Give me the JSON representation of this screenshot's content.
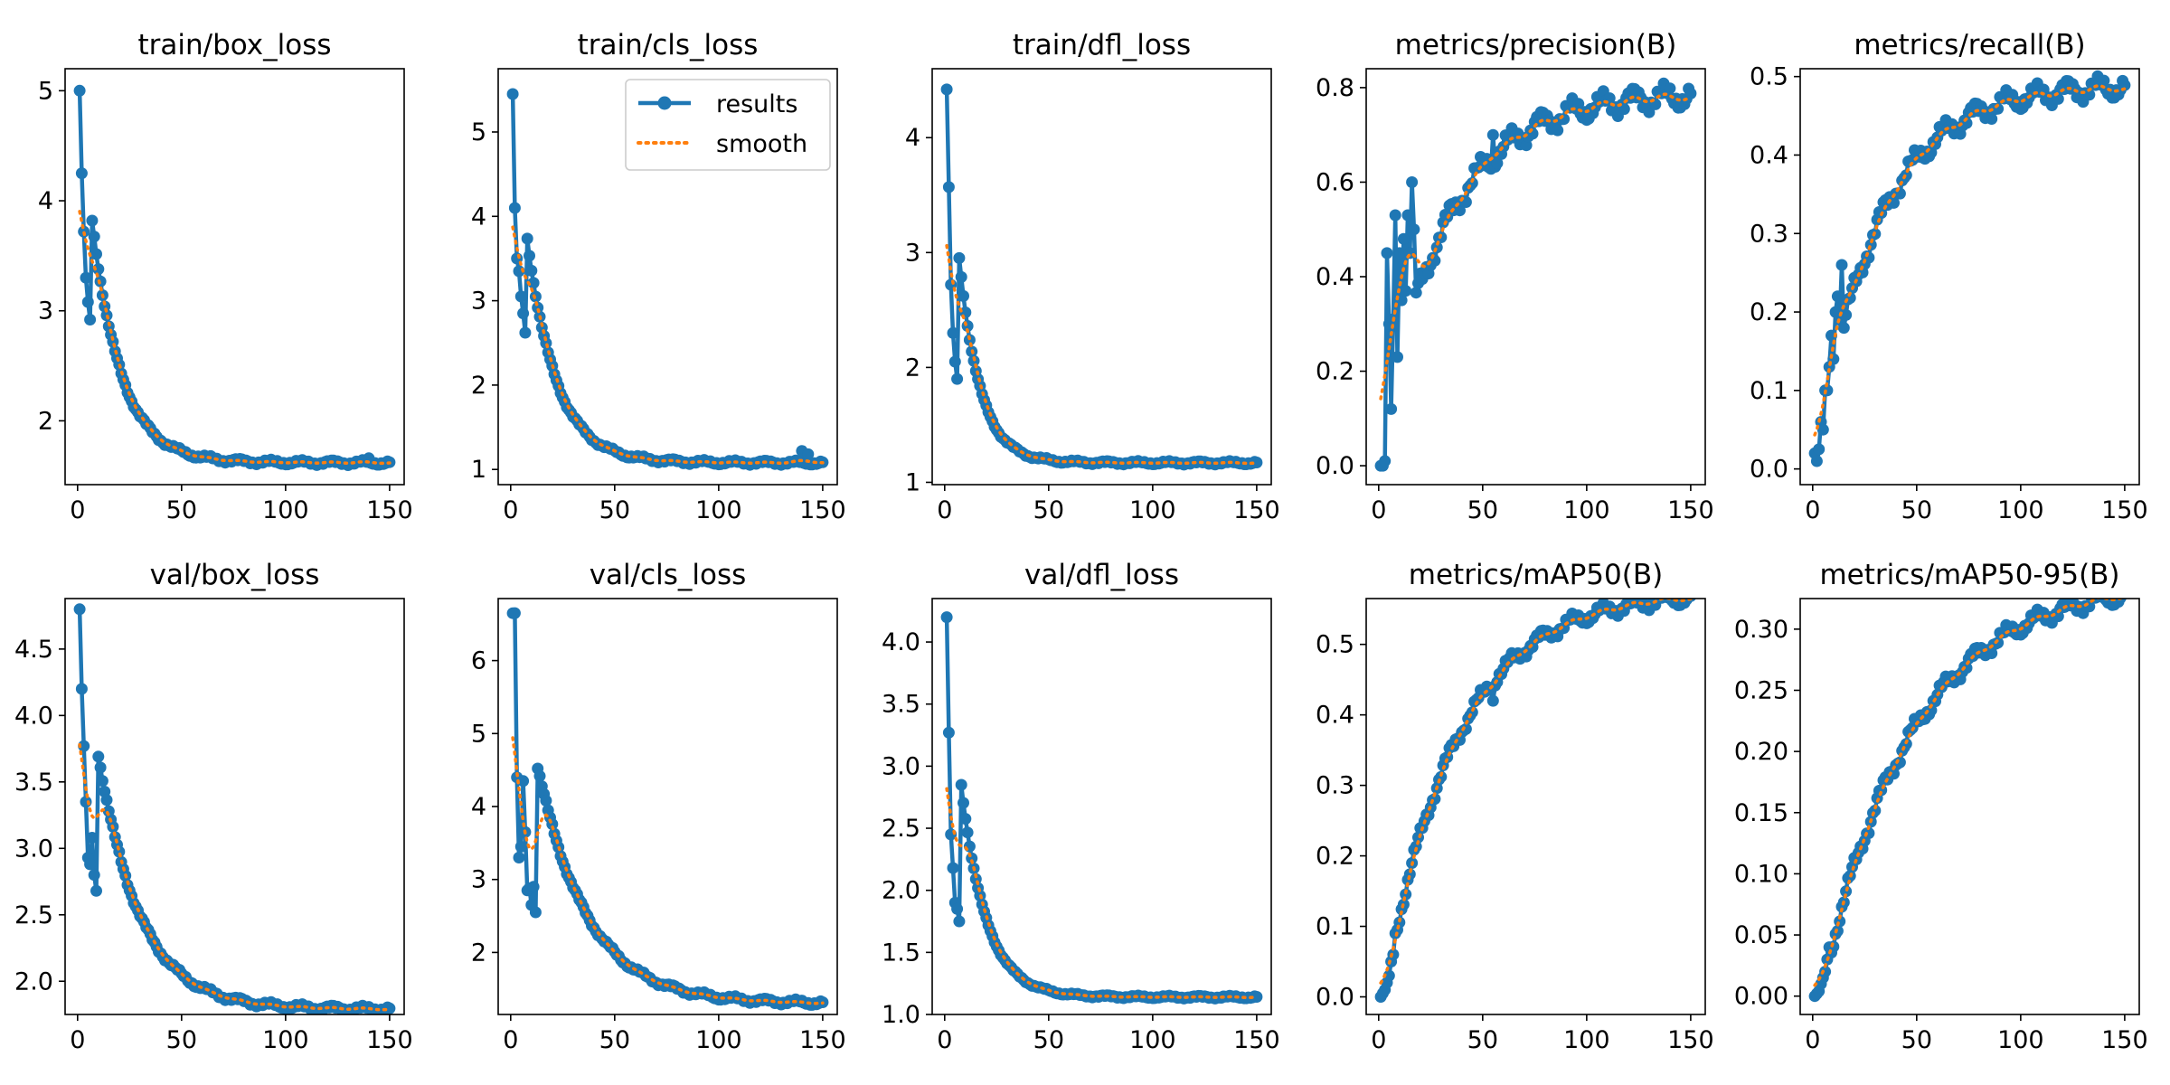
{
  "figure": {
    "legend": {
      "results_label": "results",
      "smooth_label": "smooth",
      "placement": "upper-right of train/cls_loss"
    },
    "colors": {
      "results": "#1f77b4",
      "smooth": "#ff7f0e",
      "axes": "#000000",
      "background": "#ffffff"
    }
  },
  "chart_data": [
    {
      "type": "line",
      "title": "train/box_loss",
      "xlim": [
        -6,
        157
      ],
      "ylim": [
        1.42,
        5.2
      ],
      "xticks": [
        0,
        50,
        100,
        150
      ],
      "yticks": [
        2,
        3,
        4,
        5
      ],
      "start": 5.0,
      "rise": 1.05,
      "end": 1.62,
      "tau": 14,
      "noise": 0.012,
      "outliers": [
        [
          140,
          1.66
        ]
      ],
      "early": [
        [
          1,
          5.0
        ],
        [
          2,
          4.25
        ],
        [
          3,
          3.72
        ],
        [
          4,
          3.3
        ],
        [
          5,
          3.08
        ],
        [
          6,
          2.92
        ]
      ],
      "series": [
        {
          "name": "results"
        },
        {
          "name": "smooth"
        }
      ]
    },
    {
      "type": "line",
      "title": "train/cls_loss",
      "xlim": [
        -6,
        157
      ],
      "ylim": [
        0.82,
        5.75
      ],
      "xticks": [
        0,
        50,
        100,
        150
      ],
      "yticks": [
        1,
        2,
        3,
        4,
        5
      ],
      "start": 5.45,
      "rise": 1.0,
      "end": 1.08,
      "tau": 14,
      "noise": 0.014,
      "outliers": [
        [
          140,
          1.22
        ],
        [
          143,
          1.18
        ]
      ],
      "early": [
        [
          1,
          5.45
        ],
        [
          2,
          4.1
        ],
        [
          3,
          3.5
        ],
        [
          4,
          3.35
        ],
        [
          5,
          3.05
        ],
        [
          6,
          2.85
        ],
        [
          7,
          2.62
        ]
      ],
      "series": [
        {
          "name": "results"
        },
        {
          "name": "smooth"
        }
      ]
    },
    {
      "type": "line",
      "title": "train/dfl_loss",
      "xlim": [
        -6,
        157
      ],
      "ylim": [
        0.98,
        4.6
      ],
      "xticks": [
        0,
        50,
        100,
        150
      ],
      "yticks": [
        1,
        2,
        3,
        4
      ],
      "start": 4.42,
      "rise": 1.0,
      "end": 1.17,
      "tau": 10,
      "noise": 0.008,
      "outliers": [],
      "early": [
        [
          1,
          4.42
        ],
        [
          2,
          3.57
        ],
        [
          3,
          2.72
        ],
        [
          4,
          2.3
        ],
        [
          5,
          2.05
        ],
        [
          6,
          1.9
        ]
      ],
      "series": [
        {
          "name": "results"
        },
        {
          "name": "smooth"
        }
      ]
    },
    {
      "type": "line",
      "title": "metrics/precision(B)",
      "xlim": [
        -6,
        157
      ],
      "ylim": [
        -0.04,
        0.84
      ],
      "xticks": [
        0,
        50,
        100,
        150
      ],
      "yticks": [
        0.0,
        0.2,
        0.4,
        0.6,
        0.8
      ],
      "start": 0.05,
      "rise": 0.0,
      "end": 0.79,
      "tau": 32,
      "noise": 0.015,
      "outliers": [
        [
          55,
          0.7
        ],
        [
          57,
          0.64
        ]
      ],
      "early": [
        [
          1,
          0.0
        ],
        [
          2,
          0.0
        ],
        [
          3,
          0.01
        ],
        [
          4,
          0.45
        ],
        [
          5,
          0.3
        ],
        [
          6,
          0.12
        ],
        [
          7,
          0.31
        ],
        [
          8,
          0.53
        ],
        [
          9,
          0.23
        ],
        [
          10,
          0.45
        ],
        [
          11,
          0.35
        ],
        [
          12,
          0.48
        ],
        [
          13,
          0.37
        ],
        [
          14,
          0.53
        ],
        [
          15,
          0.45
        ],
        [
          16,
          0.6
        ],
        [
          17,
          0.5
        ]
      ],
      "series": [
        {
          "name": "results"
        },
        {
          "name": "smooth"
        }
      ]
    },
    {
      "type": "line",
      "title": "metrics/recall(B)",
      "xlim": [
        -6,
        157
      ],
      "ylim": [
        -0.02,
        0.51
      ],
      "xticks": [
        0,
        50,
        100,
        150
      ],
      "yticks": [
        0.0,
        0.1,
        0.2,
        0.3,
        0.4,
        0.5
      ],
      "start": 0.0,
      "rise": 0.0,
      "end": 0.49,
      "tau": 30,
      "noise": 0.008,
      "outliers": [],
      "early": [
        [
          1,
          0.02
        ],
        [
          2,
          0.01
        ],
        [
          3,
          0.025
        ],
        [
          4,
          0.06
        ],
        [
          5,
          0.05
        ],
        [
          6,
          0.1
        ],
        [
          7,
          0.1
        ],
        [
          8,
          0.13
        ],
        [
          9,
          0.17
        ],
        [
          10,
          0.14
        ],
        [
          11,
          0.2
        ],
        [
          12,
          0.22
        ],
        [
          13,
          0.19
        ],
        [
          14,
          0.26
        ]
      ],
      "series": [
        {
          "name": "results"
        },
        {
          "name": "smooth"
        }
      ]
    },
    {
      "type": "line",
      "title": "val/box_loss",
      "xlim": [
        -6,
        157
      ],
      "ylim": [
        1.75,
        4.88
      ],
      "xticks": [
        0,
        50,
        100,
        150
      ],
      "yticks": [
        2.0,
        2.5,
        3.0,
        3.5,
        4.0,
        4.5
      ],
      "start": 4.8,
      "rise": 0.95,
      "end": 1.79,
      "tau": 20,
      "noise": 0.012,
      "outliers": [],
      "early": [
        [
          1,
          4.8
        ],
        [
          2,
          4.2
        ],
        [
          3,
          3.77
        ],
        [
          4,
          3.35
        ],
        [
          5,
          2.93
        ],
        [
          6,
          2.88
        ],
        [
          7,
          3.08
        ],
        [
          8,
          2.8
        ],
        [
          9,
          2.68
        ]
      ],
      "series": [
        {
          "name": "results"
        },
        {
          "name": "smooth"
        }
      ]
    },
    {
      "type": "line",
      "title": "val/cls_loss",
      "xlim": [
        -6,
        157
      ],
      "ylim": [
        1.15,
        6.85
      ],
      "xticks": [
        0,
        50,
        100,
        150
      ],
      "yticks": [
        2,
        3,
        4,
        5,
        6
      ],
      "start": 6.65,
      "rise": 1.0,
      "end": 1.3,
      "tau": 24,
      "noise": 0.02,
      "outliers": [],
      "early": [
        [
          2,
          6.65
        ],
        [
          3,
          4.4
        ],
        [
          4,
          3.3
        ],
        [
          5,
          3.45
        ],
        [
          6,
          4.35
        ],
        [
          7,
          3.65
        ],
        [
          8,
          2.85
        ],
        [
          9,
          2.88
        ],
        [
          10,
          2.65
        ],
        [
          11,
          2.9
        ],
        [
          12,
          2.55
        ]
      ],
      "series": [
        {
          "name": "results"
        },
        {
          "name": "smooth"
        }
      ]
    },
    {
      "type": "line",
      "title": "val/dfl_loss",
      "xlim": [
        -6,
        157
      ],
      "ylim": [
        1.0,
        4.35
      ],
      "xticks": [
        0,
        50,
        100,
        150
      ],
      "yticks": [
        1.0,
        1.5,
        2.0,
        2.5,
        3.0,
        3.5,
        4.0
      ],
      "start": 4.2,
      "rise": 1.0,
      "end": 1.14,
      "tau": 12,
      "noise": 0.006,
      "outliers": [],
      "early": [
        [
          1,
          4.2
        ],
        [
          2,
          3.27
        ],
        [
          3,
          2.45
        ],
        [
          4,
          2.18
        ],
        [
          5,
          1.9
        ],
        [
          6,
          1.85
        ],
        [
          7,
          1.75
        ]
      ],
      "series": [
        {
          "name": "results"
        },
        {
          "name": "smooth"
        }
      ]
    },
    {
      "type": "line",
      "title": "metrics/mAP50(B)",
      "xlim": [
        -6,
        157
      ],
      "ylim": [
        -0.025,
        0.565
      ],
      "xticks": [
        0,
        50,
        100,
        150
      ],
      "yticks": [
        0.0,
        0.1,
        0.2,
        0.3,
        0.4,
        0.5
      ],
      "start": -0.02,
      "rise": 0.0,
      "end": 0.575,
      "tau": 35,
      "noise": 0.006,
      "outliers": [
        [
          55,
          0.42
        ]
      ],
      "early": [
        [
          1,
          0.0
        ],
        [
          2,
          0.005
        ],
        [
          3,
          0.01
        ],
        [
          4,
          0.02
        ],
        [
          5,
          0.03
        ],
        [
          6,
          0.05
        ],
        [
          7,
          0.06
        ],
        [
          8,
          0.09
        ]
      ],
      "series": [
        {
          "name": "results"
        },
        {
          "name": "smooth"
        }
      ]
    },
    {
      "type": "line",
      "title": "metrics/mAP50-95(B)",
      "xlim": [
        -6,
        157
      ],
      "ylim": [
        -0.015,
        0.325
      ],
      "xticks": [
        0,
        50,
        100,
        150
      ],
      "yticks": [
        0.0,
        0.05,
        0.1,
        0.15,
        0.2,
        0.25,
        0.3
      ],
      "start": -0.02,
      "rise": 0.0,
      "end": 0.34,
      "tau": 44,
      "noise": 0.004,
      "outliers": [],
      "early": [
        [
          1,
          0.0
        ],
        [
          2,
          0.002
        ],
        [
          3,
          0.004
        ],
        [
          4,
          0.01
        ],
        [
          5,
          0.015
        ],
        [
          6,
          0.02
        ],
        [
          7,
          0.03
        ],
        [
          8,
          0.04
        ]
      ],
      "series": [
        {
          "name": "results"
        },
        {
          "name": "smooth"
        }
      ]
    }
  ]
}
